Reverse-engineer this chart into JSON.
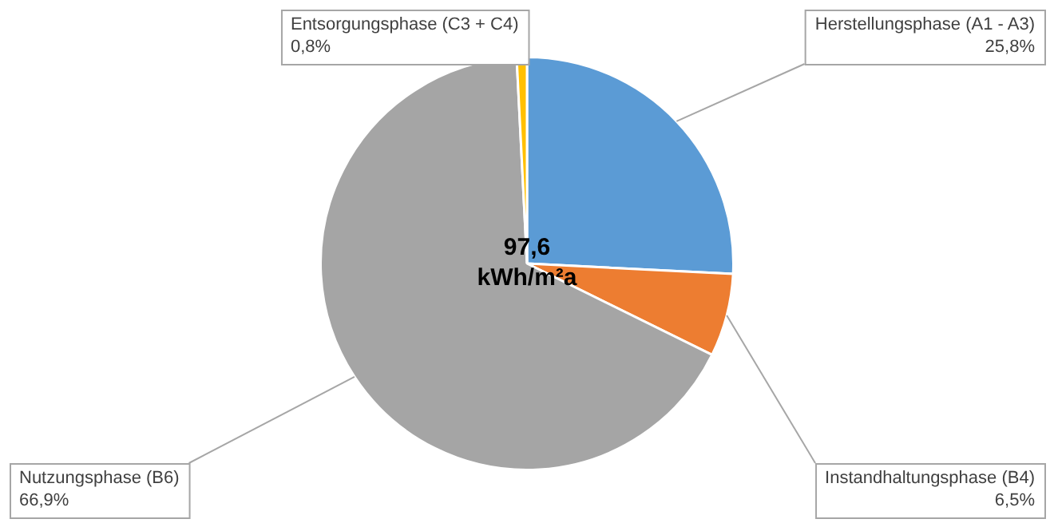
{
  "chart_data": {
    "type": "pie",
    "categories": [
      "Herstellungsphase (A1 - A3)",
      "Instandhaltungsphase (B4)",
      "Nutzungsphase (B6)",
      "Entsorgungsphase (C3 + C4)"
    ],
    "values": [
      25.8,
      6.5,
      66.9,
      0.8
    ],
    "value_labels": [
      "25,8%",
      "6,5%",
      "66,9%",
      "0,8%"
    ],
    "colors": [
      "#5b9bd5",
      "#ed7d31",
      "#a5a5a5",
      "#ffc000"
    ],
    "annotations": [
      "97,6 kWh/m²a"
    ],
    "legend": false
  }
}
